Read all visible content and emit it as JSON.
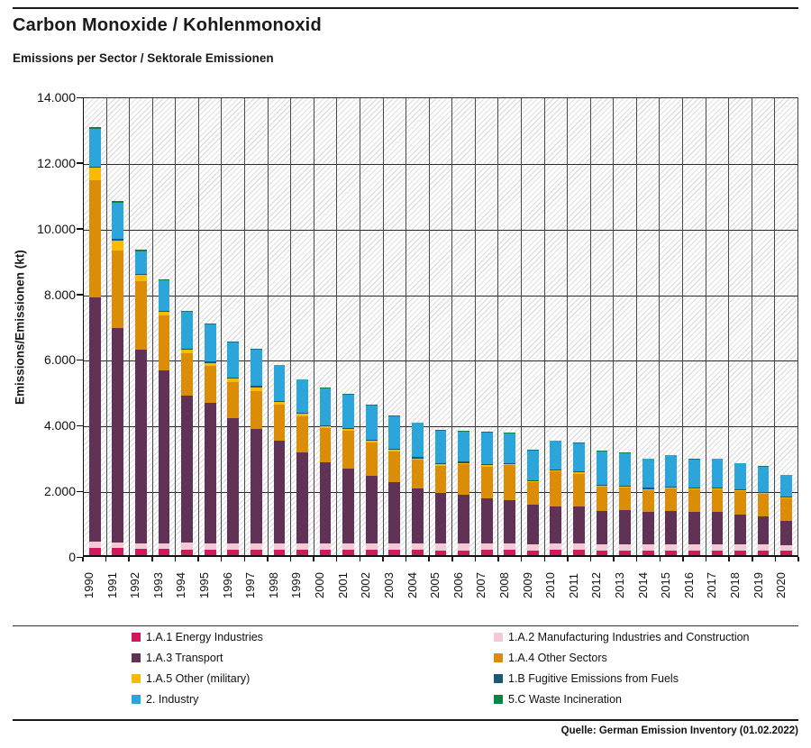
{
  "header": {
    "title": "Carbon Monoxide / Kohlenmonoxid",
    "subtitle": "Emissions per Sector / Sektorale Emissionen"
  },
  "source": "Quelle: German Emission Inventory (01.02.2022)",
  "chart_data": {
    "type": "bar",
    "stacked": true,
    "title": "Carbon Monoxide / Kohlenmonoxid",
    "subtitle": "Emissions per Sector / Sektorale Emissionen",
    "xlabel": "",
    "ylabel": "Emissions/Emissionen (kt)",
    "ylim": [
      0,
      14000
    ],
    "ytick_interval": 2000,
    "ytick_labels_top_to_bottom": [
      "14.000",
      "12.000",
      "10.000",
      "8.000",
      "6.000",
      "4.000",
      "2.000",
      "0"
    ],
    "grid": true,
    "plot_background": "diagonal-hatch",
    "legend_position": "bottom-two-columns",
    "categories": [
      1990,
      1991,
      1992,
      1993,
      1994,
      1995,
      1996,
      1997,
      1998,
      1999,
      2000,
      2001,
      2002,
      2003,
      2004,
      2005,
      2006,
      2007,
      2008,
      2009,
      2010,
      2011,
      2012,
      2013,
      2014,
      2015,
      2016,
      2017,
      2018,
      2019,
      2020
    ],
    "series": [
      {
        "name": "1.A.1 Energy Industries",
        "color": "#ce1a5c",
        "values": [
          230,
          210,
          200,
          190,
          170,
          170,
          170,
          160,
          160,
          160,
          160,
          160,
          160,
          160,
          160,
          150,
          150,
          165,
          160,
          150,
          160,
          160,
          150,
          150,
          150,
          150,
          150,
          150,
          150,
          150,
          140
        ]
      },
      {
        "name": "1.A.2 Manufacturing Industries and Construction",
        "color": "#f4c8d5",
        "values": [
          190,
          170,
          160,
          160,
          210,
          200,
          200,
          200,
          200,
          200,
          200,
          210,
          210,
          210,
          210,
          210,
          210,
          185,
          190,
          190,
          190,
          190,
          180,
          180,
          180,
          180,
          180,
          180,
          180,
          180,
          170
        ]
      },
      {
        "name": "1.A.3 Transport",
        "color": "#5f3256",
        "values": [
          7470,
          6570,
          5940,
          5300,
          4520,
          4300,
          3830,
          3500,
          3140,
          2790,
          2490,
          2280,
          2070,
          1860,
          1680,
          1540,
          1490,
          1400,
          1330,
          1200,
          1150,
          1130,
          1030,
          1050,
          990,
          1030,
          1010,
          990,
          910,
          850,
          730
        ]
      },
      {
        "name": "1.A.4 Other Sectors",
        "color": "#dc8d07",
        "values": [
          3610,
          2390,
          2100,
          1700,
          1290,
          1120,
          1090,
          1180,
          1110,
          1110,
          1040,
          1150,
          1010,
          940,
          870,
          840,
          940,
          970,
          1080,
          690,
          1060,
          1010,
          740,
          690,
          680,
          690,
          680,
          700,
          720,
          700,
          690
        ]
      },
      {
        "name": "1.A.5 Other (military)",
        "color": "#f9bb00",
        "values": [
          370,
          300,
          200,
          100,
          100,
          100,
          120,
          100,
          80,
          70,
          60,
          60,
          60,
          50,
          50,
          40,
          40,
          40,
          40,
          40,
          40,
          40,
          30,
          30,
          30,
          30,
          30,
          30,
          30,
          30,
          30
        ]
      },
      {
        "name": "1.B Fugitive Emissions from Fuels",
        "color": "#1a5878",
        "values": [
          30,
          60,
          30,
          30,
          40,
          40,
          40,
          40,
          30,
          30,
          30,
          30,
          30,
          30,
          30,
          30,
          30,
          30,
          30,
          30,
          30,
          30,
          30,
          30,
          30,
          30,
          30,
          30,
          30,
          30,
          30
        ]
      },
      {
        "name": "2. Industry",
        "color": "#2ca5db",
        "values": [
          1150,
          1100,
          690,
          940,
          1120,
          1150,
          1070,
          1120,
          1100,
          1020,
          1130,
          1040,
          1050,
          1000,
          1050,
          1010,
          930,
          970,
          900,
          910,
          870,
          870,
          1020,
          1000,
          890,
          950,
          850,
          870,
          790,
          780,
          660
        ]
      },
      {
        "name": "5.C Waste Incineration",
        "color": "#0a8442",
        "values": [
          80,
          50,
          30,
          30,
          25,
          25,
          25,
          20,
          20,
          20,
          20,
          20,
          20,
          20,
          20,
          20,
          20,
          20,
          20,
          20,
          20,
          20,
          20,
          20,
          20,
          20,
          20,
          20,
          20,
          20,
          20
        ]
      }
    ]
  }
}
